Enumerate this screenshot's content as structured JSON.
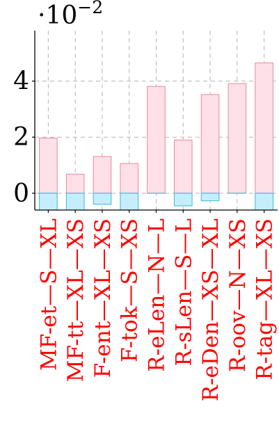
{
  "chart_data": {
    "type": "bar",
    "title": "",
    "xlabel": "",
    "ylabel": "",
    "scale_label": {
      "base": "·10",
      "exponent": "−2"
    },
    "ylim": [
      -0.006,
      0.058
    ],
    "yticks": [
      0,
      0.02,
      0.04
    ],
    "ytick_labels": [
      "0",
      "2",
      "4"
    ],
    "grid": true,
    "categories": [
      "MF-et—S—XL",
      "MF-tt—XL—XS",
      "F-ent—XL—XS",
      "F-tok—S—XS",
      "R-eLen—N—L",
      "R-sLen—S—L",
      "R-eDen—XS—XL",
      "R-oov—N—XS",
      "R-tag—XL—XS"
    ],
    "series": [
      {
        "color": "#fde0e8",
        "stroke": "#e8889c",
        "values": [
          0.0197,
          0.0068,
          0.0131,
          0.0106,
          0.0381,
          0.019,
          0.0352,
          0.0391,
          0.0465
        ]
      },
      {
        "color": "#c6eefa",
        "stroke": "#35b8d8",
        "values": [
          -0.006,
          -0.006,
          -0.0039,
          -0.006,
          0,
          -0.0045,
          -0.0027,
          0,
          -0.006
        ]
      }
    ]
  }
}
